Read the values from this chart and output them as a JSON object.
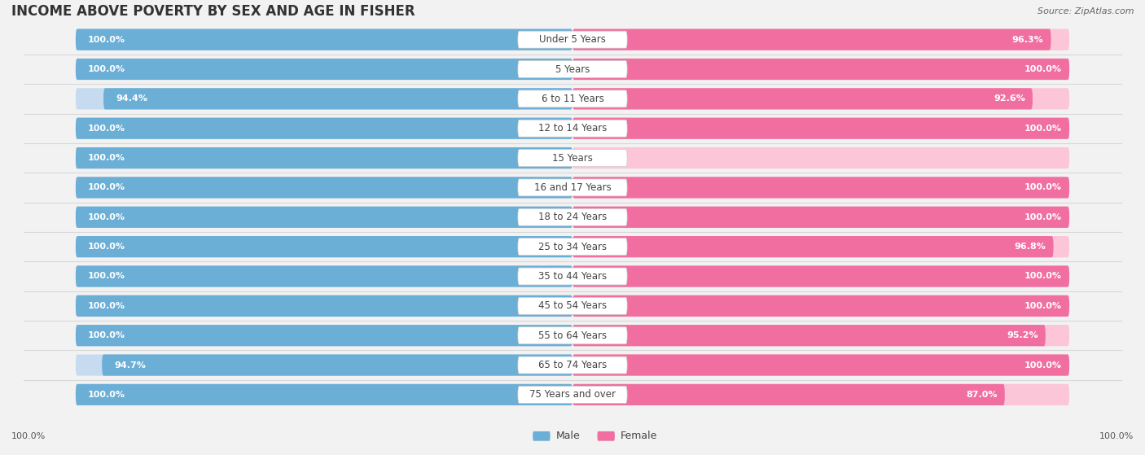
{
  "title": "INCOME ABOVE POVERTY BY SEX AND AGE IN FISHER",
  "source": "Source: ZipAtlas.com",
  "categories": [
    "Under 5 Years",
    "5 Years",
    "6 to 11 Years",
    "12 to 14 Years",
    "15 Years",
    "16 and 17 Years",
    "18 to 24 Years",
    "25 to 34 Years",
    "35 to 44 Years",
    "45 to 54 Years",
    "55 to 64 Years",
    "65 to 74 Years",
    "75 Years and over"
  ],
  "male_values": [
    100.0,
    100.0,
    94.4,
    100.0,
    100.0,
    100.0,
    100.0,
    100.0,
    100.0,
    100.0,
    100.0,
    94.7,
    100.0
  ],
  "female_values": [
    96.3,
    100.0,
    92.6,
    100.0,
    0.0,
    100.0,
    100.0,
    96.8,
    100.0,
    100.0,
    95.2,
    100.0,
    87.0
  ],
  "male_color": "#6baed6",
  "male_light_color": "#c6dbef",
  "female_color": "#f06fa0",
  "female_light_color": "#fcc5d8",
  "bg_color": "#f2f2f2",
  "label_bg_color": "#ffffff",
  "title_fontsize": 12,
  "label_fontsize": 8.5,
  "value_fontsize": 8,
  "legend_fontsize": 9,
  "source_fontsize": 8,
  "bottom_left_value": "100.0%",
  "bottom_right_value": "100.0%"
}
